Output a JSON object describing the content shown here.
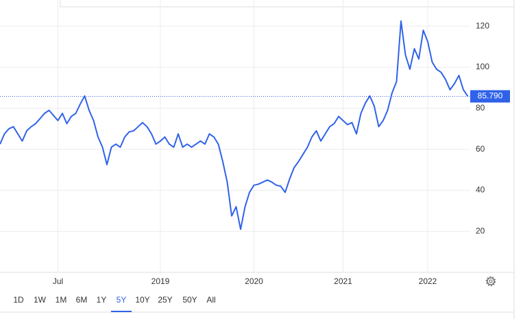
{
  "chart_data": {
    "type": "line",
    "categories": [
      null,
      null,
      null,
      null,
      null,
      null,
      null,
      null,
      null,
      null,
      null,
      null,
      null,
      "Jul",
      null,
      null,
      null,
      null,
      null,
      null,
      null,
      null,
      null,
      null,
      null,
      null,
      null,
      null,
      null,
      null,
      null,
      null,
      null,
      null,
      null,
      null,
      "2019",
      null,
      null,
      null,
      null,
      null,
      null,
      null,
      null,
      null,
      null,
      null,
      null,
      null,
      null,
      null,
      null,
      null,
      null,
      null,
      null,
      "2020",
      null,
      null,
      null,
      null,
      null,
      null,
      null,
      null,
      null,
      null,
      null,
      null,
      null,
      null,
      null,
      null,
      null,
      null,
      null,
      "2021",
      null,
      null,
      null,
      null,
      null,
      null,
      null,
      null,
      null,
      null,
      null,
      null,
      null,
      null,
      null,
      null,
      null,
      null,
      "2022",
      null,
      null,
      null,
      null,
      null,
      null,
      null,
      null,
      null
    ],
    "series": [
      {
        "color": "#2f62e9",
        "values": [
          62.5,
          67.5,
          70,
          71,
          67.5,
          64,
          69,
          71,
          72.5,
          75,
          77.5,
          79,
          76.5,
          74,
          77.5,
          72.5,
          76,
          77.5,
          82,
          86,
          79,
          74,
          66,
          61,
          52.5,
          61,
          62.5,
          61,
          66,
          68.5,
          69,
          71,
          73,
          71,
          67.5,
          62.5,
          64,
          66,
          62.5,
          61,
          67.5,
          61,
          62.5,
          61,
          62.5,
          64,
          62.5,
          67.5,
          66,
          62.5,
          54,
          44,
          27.5,
          32,
          21,
          32,
          39,
          42.5,
          43,
          44,
          45,
          44,
          42.5,
          42,
          39,
          45.5,
          51,
          54,
          57.5,
          61,
          66,
          69,
          64,
          67.5,
          71,
          72.5,
          76,
          74,
          72,
          73,
          67.5,
          77.5,
          82.5,
          86,
          81,
          71,
          74,
          79,
          87.5,
          93,
          122.5,
          106,
          99,
          109,
          104,
          118,
          112.5,
          102.5,
          99,
          97.5,
          94,
          89,
          92,
          96,
          89,
          85.79
        ]
      }
    ],
    "ylim": [
      0,
      128.75
    ],
    "yticks": [
      20,
      40,
      60,
      80,
      100,
      120
    ],
    "grid": true,
    "last_price": {
      "value": 85.79,
      "label": "85.790"
    },
    "range_buttons": [
      "1D",
      "1W",
      "1M",
      "6M",
      "1Y",
      "5Y",
      "10Y",
      "25Y",
      "50Y",
      "All"
    ],
    "active_range_index": 5
  }
}
